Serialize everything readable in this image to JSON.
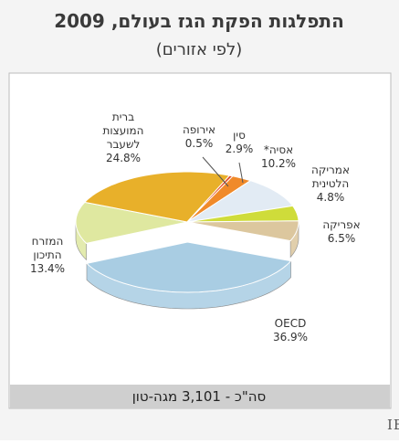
{
  "chart_data": {
    "type": "pie",
    "title": "התפלגות הפקת הגז בעולם, 2009",
    "subtitle": "(לפי אזורים)",
    "categories": [
      [
        "OECD"
      ],
      [
        "המזרח",
        "התיכון"
      ],
      [
        "ברית",
        "המועצות",
        "לשעבר"
      ],
      [
        "אירופה"
      ],
      [
        "סין"
      ],
      [
        "אסיה*"
      ],
      [
        "אמריקה",
        "הלטינית"
      ],
      [
        "אפריקה"
      ]
    ],
    "values": [
      36.9,
      13.4,
      24.8,
      0.5,
      2.9,
      10.2,
      4.8,
      6.5
    ],
    "value_labels": [
      "36.9%",
      "13.4%",
      "24.8%",
      "0.5%",
      "2.9%",
      "10.2%",
      "4.8%",
      "6.5%"
    ],
    "colors": [
      "#a9cde3",
      "#dfe8a0",
      "#e8b02a",
      "#e2502a",
      "#f08a2a",
      "#e2ebf4",
      "#cfdc3a",
      "#dcc79e"
    ],
    "total": "סה\"כ - 3,101 מגה-טון",
    "source": "מקור: IEA - International Energy Agency"
  }
}
